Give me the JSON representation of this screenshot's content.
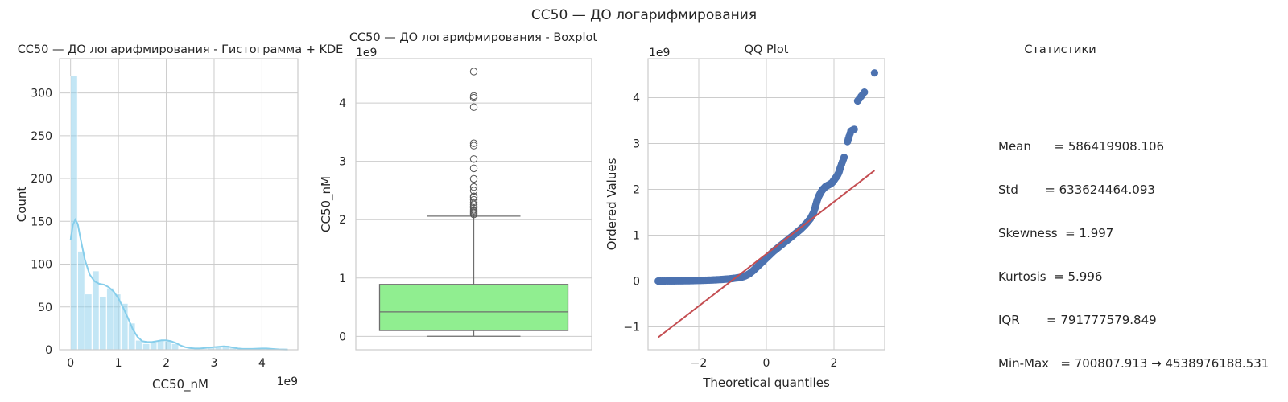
{
  "suptitle": "CC50 — ДО логарифмирования",
  "colors": {
    "hist_fill": "#87ceeb",
    "kde_line": "#87ceeb",
    "box_fill": "#90ee90",
    "qq_points": "#4c72b0",
    "qq_line": "#c44e52",
    "outlier_edge": "#555555"
  },
  "chart_data": [
    {
      "type": "bar",
      "subtype": "histogram-kde",
      "title": "CC50 — ДО логарифмирования - Гистограмма + KDE",
      "xlabel": "CC50_nM",
      "ylabel": "Count",
      "x_offset_label": "1e9",
      "xlim": [
        -0.23,
        4.75
      ],
      "ylim": [
        0,
        340
      ],
      "xticks": [
        0,
        1,
        2,
        3,
        4
      ],
      "yticks": [
        0,
        50,
        100,
        150,
        200,
        250,
        300
      ],
      "bin_edges": [
        0.0007,
        0.152,
        0.303,
        0.454,
        0.605,
        0.756,
        0.907,
        1.058,
        1.209,
        1.36,
        1.511,
        1.662,
        1.813,
        1.964,
        2.115,
        2.266,
        2.417,
        2.568,
        2.719,
        2.87,
        3.021,
        3.172,
        3.323,
        3.474,
        3.625,
        3.776,
        3.927,
        4.078,
        4.229,
        4.38,
        4.539
      ],
      "values": [
        320,
        115,
        65,
        92,
        62,
        72,
        65,
        54,
        31,
        11,
        7,
        9,
        11,
        10,
        7,
        1,
        1,
        1,
        1,
        2,
        3,
        5,
        2,
        1,
        1,
        0,
        1,
        2,
        0,
        1
      ],
      "kde": {
        "x": [
          0.0,
          0.05,
          0.1,
          0.15,
          0.2,
          0.3,
          0.4,
          0.5,
          0.6,
          0.7,
          0.8,
          0.9,
          1.0,
          1.1,
          1.2,
          1.3,
          1.4,
          1.5,
          1.6,
          1.7,
          1.8,
          1.9,
          2.0,
          2.1,
          2.2,
          2.3,
          2.4,
          2.5,
          2.6,
          2.7,
          2.8,
          2.9,
          3.0,
          3.1,
          3.2,
          3.3,
          3.4,
          3.5,
          3.6,
          3.8,
          4.0,
          4.1,
          4.2,
          4.35,
          4.54
        ],
        "y": [
          128,
          146,
          152,
          147,
          132,
          105,
          88,
          80,
          77,
          76,
          73,
          68,
          60,
          49,
          37,
          24,
          15,
          10,
          9,
          9,
          10,
          11,
          11,
          10,
          8,
          5,
          3,
          2,
          1.5,
          1.5,
          2,
          2.5,
          3,
          3.5,
          4,
          3.5,
          2.5,
          1.5,
          1,
          1,
          1.5,
          1.5,
          1,
          0.5,
          0.2
        ]
      }
    },
    {
      "type": "boxplot",
      "title": "CC50 — ДО логарифмирования - Boxplot",
      "ylabel": "CC50_nM",
      "y_offset_label": "1e9",
      "ylim": [
        -0.23,
        4.76
      ],
      "yticks": [
        0,
        1,
        2,
        3,
        4
      ],
      "box": {
        "min": 0.0007,
        "q1": 0.1,
        "median": 0.42,
        "q3": 0.89,
        "whisker_high": 2.06
      },
      "outliers": [
        2.09,
        2.11,
        2.13,
        2.15,
        2.17,
        2.2,
        2.23,
        2.26,
        2.3,
        2.34,
        2.38,
        2.4,
        2.5,
        2.56,
        2.7,
        2.88,
        3.04,
        3.27,
        3.31,
        3.93,
        4.09,
        4.12,
        4.54
      ]
    },
    {
      "type": "scatter",
      "subtype": "qq-plot",
      "title": "QQ Plot",
      "xlabel": "Theoretical quantiles",
      "ylabel": "Ordered Values",
      "y_offset_label": "1e9",
      "xlim": [
        -3.5,
        3.5
      ],
      "ylim": [
        -1.5,
        4.85
      ],
      "xticks": [
        -2,
        0,
        2
      ],
      "yticks": [
        -1,
        0,
        1,
        2,
        3,
        4
      ],
      "fit_line": {
        "x": [
          -3.2,
          3.2
        ],
        "y": [
          -1.23,
          2.41
        ]
      },
      "points": {
        "x": [
          -3.2,
          -2.95,
          -2.8,
          -2.65,
          -2.5,
          -2.35,
          -2.2,
          -2.05,
          -1.9,
          -1.75,
          -1.6,
          -1.45,
          -1.3,
          -1.15,
          -1.0,
          -0.85,
          -0.7,
          -0.6,
          -0.5,
          -0.4,
          -0.3,
          -0.2,
          -0.1,
          0.0,
          0.1,
          0.2,
          0.3,
          0.4,
          0.5,
          0.6,
          0.7,
          0.8,
          0.9,
          1.0,
          1.1,
          1.2,
          1.3,
          1.4,
          1.45,
          1.5,
          1.55,
          1.6,
          1.65,
          1.7,
          1.75,
          1.8,
          1.85,
          1.9,
          1.95,
          2.0,
          2.05,
          2.1,
          2.15,
          2.2,
          2.3,
          2.4,
          2.5,
          2.6,
          2.7,
          2.9,
          3.2
        ],
        "y": [
          0.0007,
          0.001,
          0.002,
          0.003,
          0.004,
          0.006,
          0.008,
          0.011,
          0.014,
          0.018,
          0.022,
          0.028,
          0.035,
          0.044,
          0.055,
          0.07,
          0.09,
          0.12,
          0.16,
          0.22,
          0.29,
          0.36,
          0.43,
          0.5,
          0.57,
          0.64,
          0.7,
          0.76,
          0.82,
          0.88,
          0.94,
          1.0,
          1.06,
          1.12,
          1.19,
          1.27,
          1.36,
          1.5,
          1.62,
          1.75,
          1.85,
          1.92,
          1.98,
          2.02,
          2.06,
          2.08,
          2.1,
          2.12,
          2.15,
          2.2,
          2.25,
          2.3,
          2.38,
          2.5,
          2.7,
          3.04,
          3.27,
          3.31,
          3.93,
          4.12,
          4.54
        ]
      }
    }
  ],
  "stats": {
    "title": "Статистики",
    "lines": [
      "Mean      = 586419908.106",
      "Std       = 633624464.093",
      "Skewness  = 1.997",
      "Kurtosis  = 5.996",
      "IQR       = 791777579.849",
      "Min-Max   = 700807.913 → 4538976188.531"
    ]
  }
}
